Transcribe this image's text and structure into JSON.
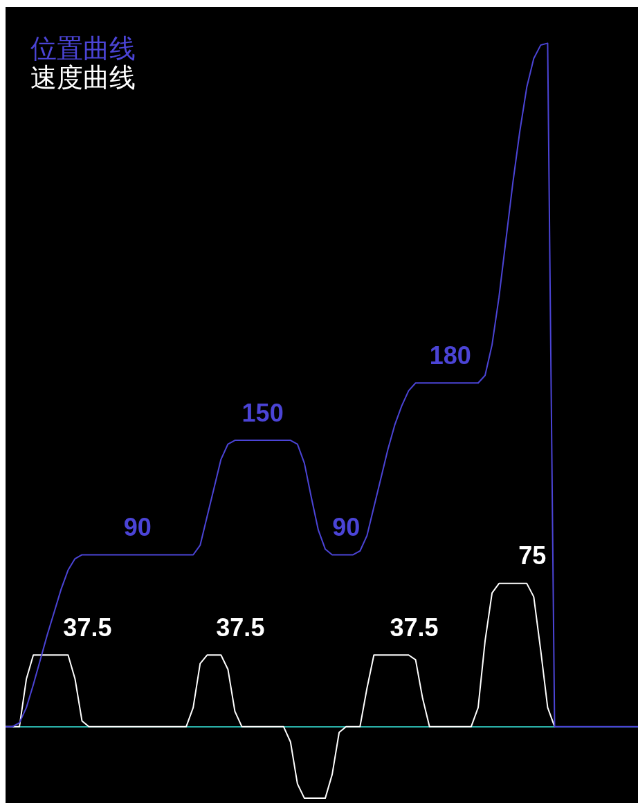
{
  "chart_data": {
    "type": "line",
    "legend": "top left",
    "tick_labels": false,
    "grid": false,
    "marker": "none",
    "line_style": "solid",
    "ylim": [
      -40,
      377
    ],
    "categories": [
      null,
      null,
      null,
      null,
      null,
      null,
      null,
      null,
      null,
      null,
      null,
      null,
      null,
      null,
      null,
      null,
      null,
      null,
      null,
      null,
      null,
      null,
      null,
      null,
      null,
      null,
      null,
      null,
      null,
      null,
      null,
      null,
      null,
      null,
      null,
      null,
      null,
      null,
      null,
      null,
      null,
      null,
      null,
      null,
      null,
      null,
      null,
      null,
      null,
      null,
      null,
      null,
      null,
      null,
      null,
      null,
      null,
      null,
      null,
      null,
      null,
      null,
      null,
      null,
      null,
      null,
      null,
      null,
      null,
      null,
      null,
      null,
      null,
      null,
      null,
      null,
      null,
      null,
      null,
      null,
      null,
      null,
      null,
      null,
      null,
      null,
      null,
      null,
      null,
      null,
      null,
      null
    ],
    "ref_lines": [
      {
        "axis": "y",
        "value": 0,
        "color": "#2ab0a8"
      }
    ],
    "series": [
      {
        "name": "位置曲线",
        "color": "#4b44d6",
        "values": [
          0,
          0,
          2,
          10,
          22,
          35,
          48,
          60,
          72,
          82,
          88,
          90,
          90,
          90,
          90,
          90,
          90,
          90,
          90,
          90,
          90,
          90,
          90,
          90,
          90,
          90,
          90,
          90,
          95,
          110,
          125,
          140,
          148,
          150,
          150,
          150,
          150,
          150,
          150,
          150,
          150,
          150,
          148,
          138,
          120,
          103,
          93,
          90,
          90,
          90,
          90,
          92,
          100,
          115,
          130,
          145,
          158,
          168,
          176,
          180,
          180,
          180,
          180,
          180,
          180,
          180,
          180,
          180,
          180,
          184,
          200,
          225,
          255,
          285,
          312,
          335,
          350,
          357,
          358,
          0,
          0,
          0,
          0,
          0,
          0,
          0,
          0,
          0,
          0,
          0,
          0,
          0
        ],
        "value_labels": [
          null,
          null,
          null,
          null,
          null,
          null,
          null,
          null,
          null,
          null,
          null,
          null,
          null,
          null,
          null,
          null,
          null,
          null,
          null,
          "90",
          null,
          null,
          null,
          null,
          null,
          null,
          null,
          null,
          null,
          null,
          null,
          null,
          null,
          null,
          null,
          null,
          null,
          "150",
          null,
          null,
          null,
          null,
          null,
          null,
          null,
          null,
          null,
          null,
          null,
          "90",
          null,
          null,
          null,
          null,
          null,
          null,
          null,
          null,
          null,
          null,
          null,
          null,
          null,
          null,
          "180",
          null,
          null,
          null,
          null,
          null,
          null,
          null,
          null,
          null,
          null,
          null,
          null,
          null,
          null,
          null,
          null,
          null,
          null,
          null,
          null,
          null,
          null,
          null,
          null,
          null,
          null,
          null
        ]
      },
      {
        "name": "速度曲线",
        "color": "#ffffff",
        "values": [
          0,
          0,
          0,
          25,
          37.5,
          37.5,
          37.5,
          37.5,
          37.5,
          37.5,
          25,
          3,
          0,
          0,
          0,
          0,
          0,
          0,
          0,
          0,
          0,
          0,
          0,
          0,
          0,
          0,
          0,
          10,
          33,
          37.5,
          37.5,
          37.5,
          30,
          8,
          0,
          0,
          0,
          0,
          0,
          0,
          0,
          -8,
          -30,
          -37.5,
          -37.5,
          -37.5,
          -37.5,
          -25,
          -3,
          0,
          0,
          0,
          20,
          37.5,
          37.5,
          37.5,
          37.5,
          37.5,
          37.5,
          35,
          15,
          0,
          0,
          0,
          0,
          0,
          0,
          0,
          10,
          45,
          70,
          75,
          75,
          75,
          75,
          75,
          68,
          40,
          10,
          0,
          null,
          null,
          null,
          null,
          null,
          null,
          null,
          null,
          null,
          null,
          null,
          null
        ],
        "value_labels": [
          null,
          null,
          null,
          null,
          null,
          null,
          null,
          null,
          null,
          "37.5",
          null,
          null,
          null,
          null,
          null,
          null,
          null,
          null,
          null,
          null,
          null,
          null,
          null,
          null,
          null,
          null,
          null,
          null,
          null,
          null,
          null,
          "37.5",
          null,
          null,
          null,
          null,
          null,
          null,
          null,
          null,
          null,
          null,
          null,
          null,
          null,
          null,
          null,
          null,
          null,
          null,
          null,
          null,
          null,
          null,
          null,
          null,
          "37.5",
          null,
          null,
          null,
          null,
          null,
          null,
          null,
          null,
          null,
          null,
          null,
          null,
          null,
          null,
          null,
          null,
          "75",
          null,
          null,
          null,
          null,
          null,
          null,
          null,
          null,
          null,
          null,
          null,
          null,
          null,
          null,
          null,
          null,
          null,
          null
        ]
      }
    ]
  }
}
